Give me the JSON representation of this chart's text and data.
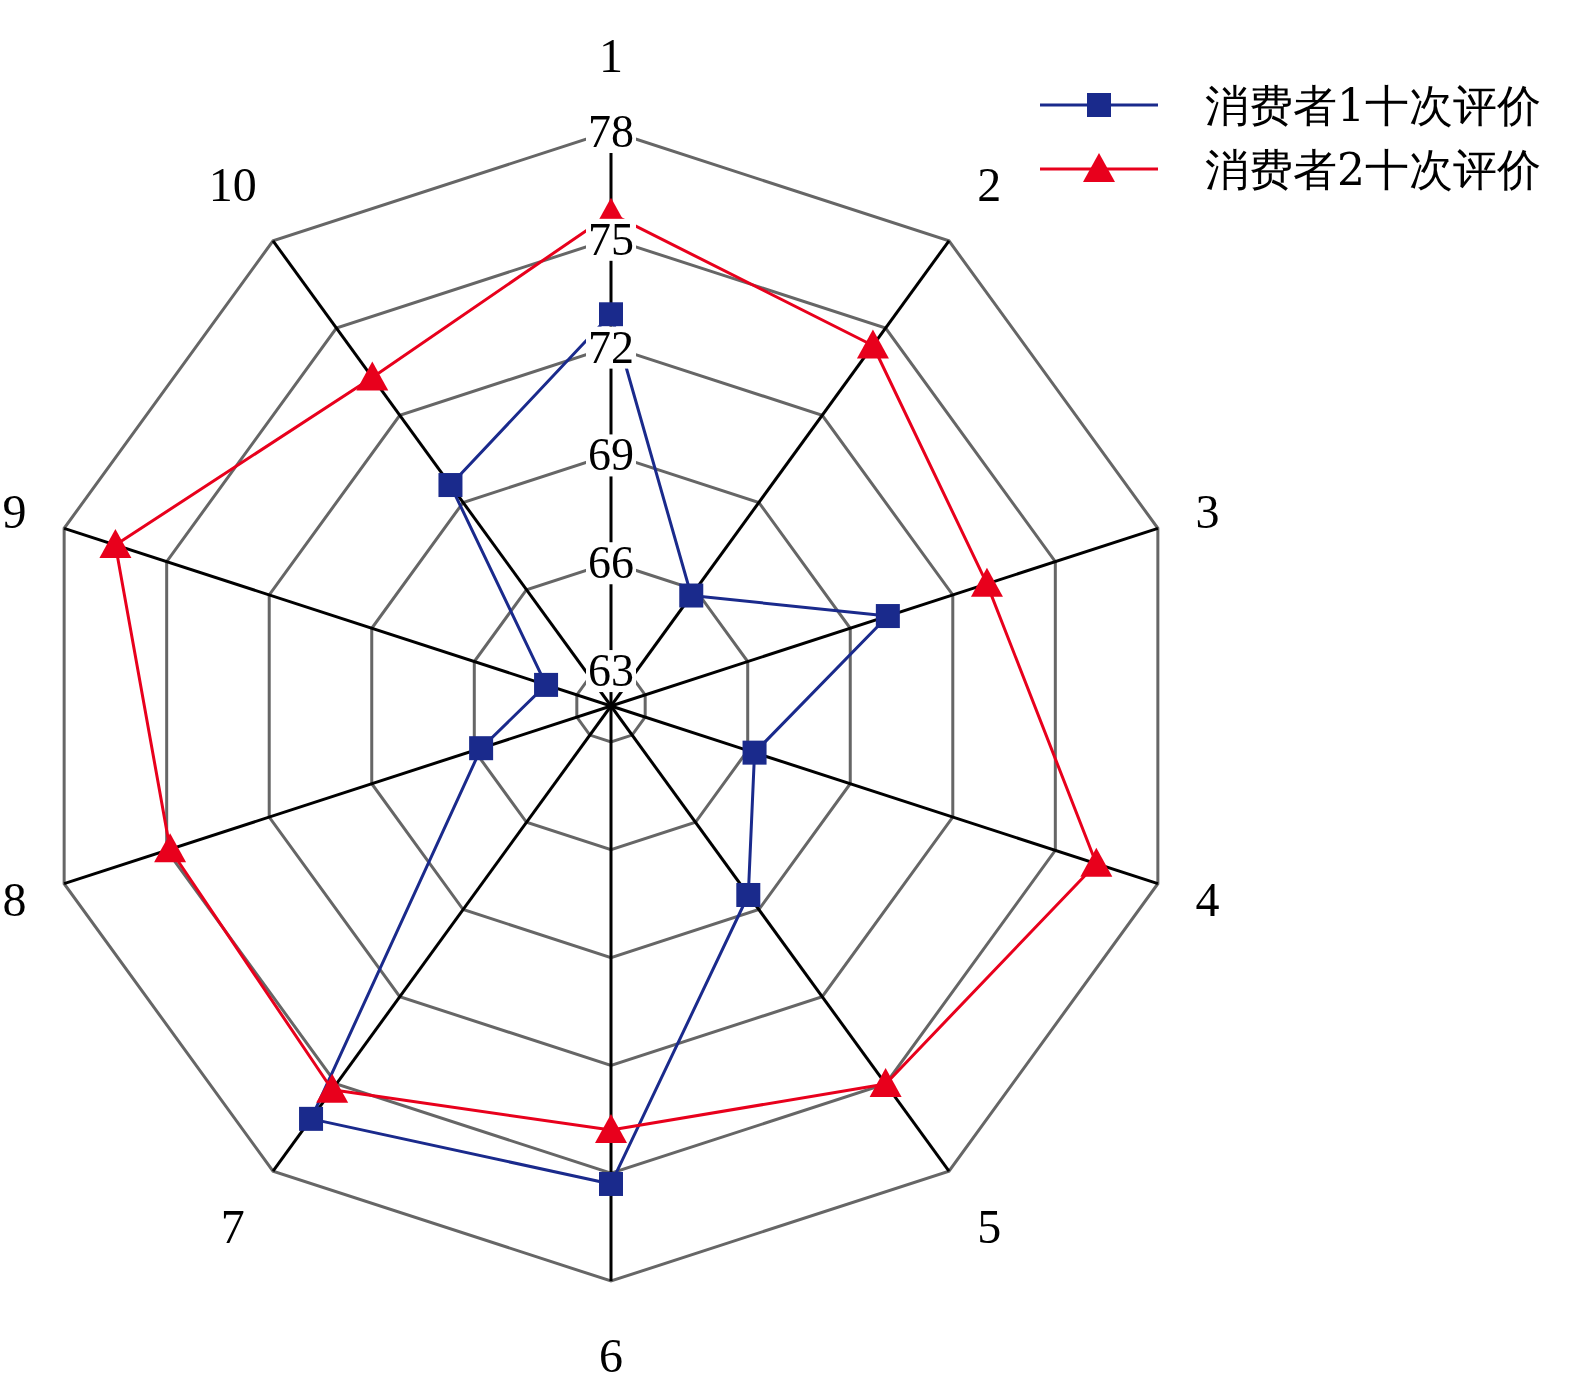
{
  "chart_data": {
    "type": "radar",
    "categories": [
      "1",
      "2",
      "3",
      "4",
      "5",
      "6",
      "7",
      "8",
      "9",
      "10"
    ],
    "ylim": [
      62,
      78
    ],
    "yticks": [
      63,
      66,
      69,
      72,
      75,
      78
    ],
    "grid": true,
    "legend": "top right",
    "series": [
      {
        "name": "消费者1十次评价",
        "color": "#1a2a8c",
        "marker": "square",
        "values": [
          72.9,
          65.8,
          70.1,
          66.2,
          68.5,
          75.3,
          76.2,
          65.8,
          63.9,
          69.6
        ]
      },
      {
        "name": "消费者2十次评价",
        "color": "#e8001c",
        "marker": "triangle",
        "values": [
          75.7,
          74.4,
          73.0,
          76.2,
          75.0,
          73.8,
          75.2,
          74.9,
          76.5,
          73.3
        ]
      }
    ]
  }
}
